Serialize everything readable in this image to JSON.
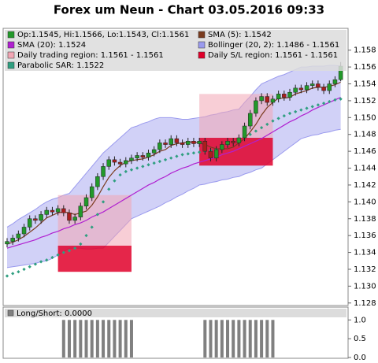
{
  "chart_data": [
    {
      "type": "candlestick",
      "title": "Forex um Neun - Chart 03.05.2016 09:33",
      "name": "Op:1.1545, Hi:1.1566, Lo:1.1543, Cl:1.1561",
      "up_color": "#22992a",
      "down_color": "#aa1e1e",
      "ylim": [
        1.1277,
        1.1604
      ],
      "yticks": [
        1.128,
        {
          "value": 1.13,
          "label": "1.130"
        },
        1.132,
        1.134,
        1.136,
        1.138,
        {
          "value": 1.14,
          "label": "1.140"
        },
        1.142,
        1.144,
        1.146,
        1.148,
        {
          "value": 1.15,
          "label": "1.150"
        },
        1.152,
        1.154,
        1.156,
        1.158
      ],
      "open": [
        1.135,
        1.1353,
        1.1357,
        1.1362,
        1.137,
        1.138,
        1.1378,
        1.1385,
        1.139,
        1.1388,
        1.1392,
        1.1387,
        1.1378,
        1.1382,
        1.1395,
        1.1405,
        1.1418,
        1.143,
        1.1442,
        1.145,
        1.1447,
        1.1445,
        1.1449,
        1.1452,
        1.1455,
        1.1453,
        1.1458,
        1.1462,
        1.147,
        1.1468,
        1.1475,
        1.147,
        1.1468,
        1.1472,
        1.1469,
        1.1472,
        1.146,
        1.1452,
        1.1462,
        1.1468,
        1.1472,
        1.147,
        1.1476,
        1.149,
        1.1505,
        1.152,
        1.1525,
        1.1518,
        1.1522,
        1.1528,
        1.1524,
        1.153,
        1.1535,
        1.1533,
        1.1538,
        1.154,
        1.1536,
        1.1532,
        1.154,
        1.1545
      ],
      "high": [
        1.1357,
        1.1361,
        1.1366,
        1.1374,
        1.1384,
        1.1384,
        1.1389,
        1.1394,
        1.1394,
        1.1396,
        1.1396,
        1.1391,
        1.1386,
        1.1399,
        1.1409,
        1.1422,
        1.1434,
        1.1446,
        1.1454,
        1.1454,
        1.1451,
        1.1453,
        1.1456,
        1.1459,
        1.1459,
        1.1462,
        1.1466,
        1.1474,
        1.1474,
        1.1479,
        1.1479,
        1.1474,
        1.1476,
        1.1476,
        1.1476,
        1.1476,
        1.1464,
        1.1466,
        1.1472,
        1.1476,
        1.1476,
        1.148,
        1.1494,
        1.1509,
        1.1524,
        1.1529,
        1.1529,
        1.1526,
        1.1532,
        1.1532,
        1.1534,
        1.1539,
        1.1539,
        1.1542,
        1.1544,
        1.1544,
        1.154,
        1.1544,
        1.1549,
        1.1566
      ],
      "low": [
        1.1346,
        1.1349,
        1.1353,
        1.1358,
        1.1366,
        1.1374,
        1.1374,
        1.1381,
        1.1384,
        1.1384,
        1.1383,
        1.1374,
        1.1374,
        1.1378,
        1.1391,
        1.1401,
        1.1414,
        1.1426,
        1.1438,
        1.1443,
        1.1441,
        1.1441,
        1.1445,
        1.1448,
        1.1449,
        1.1449,
        1.1454,
        1.1458,
        1.1464,
        1.1464,
        1.1466,
        1.1464,
        1.1464,
        1.1465,
        1.1465,
        1.1456,
        1.1448,
        1.1448,
        1.1458,
        1.1464,
        1.1466,
        1.1466,
        1.1472,
        1.1486,
        1.1501,
        1.1516,
        1.1514,
        1.1514,
        1.1518,
        1.152,
        1.152,
        1.1526,
        1.1529,
        1.1529,
        1.1534,
        1.1532,
        1.1528,
        1.1528,
        1.1536,
        1.1543
      ],
      "close": [
        1.1353,
        1.1357,
        1.1362,
        1.137,
        1.138,
        1.1378,
        1.1385,
        1.139,
        1.1388,
        1.1392,
        1.1387,
        1.1378,
        1.1382,
        1.1395,
        1.1405,
        1.1418,
        1.143,
        1.1442,
        1.145,
        1.1447,
        1.1445,
        1.1449,
        1.1452,
        1.1455,
        1.1453,
        1.1458,
        1.1462,
        1.147,
        1.1468,
        1.1475,
        1.147,
        1.1468,
        1.1472,
        1.1469,
        1.1472,
        1.146,
        1.1452,
        1.1462,
        1.1468,
        1.1472,
        1.147,
        1.1476,
        1.149,
        1.1505,
        1.152,
        1.1525,
        1.1518,
        1.1522,
        1.1528,
        1.1524,
        1.153,
        1.1535,
        1.1533,
        1.1538,
        1.154,
        1.1536,
        1.1532,
        1.154,
        1.1545,
        1.1561
      ],
      "series": [
        {
          "name": "SMA (5): 1.1542",
          "color": "#7a3b1e",
          "values": [
            1.135,
            1.1352,
            1.1355,
            1.1359,
            1.1364,
            1.1369,
            1.1375,
            1.1381,
            1.1384,
            1.1387,
            1.1388,
            1.1387,
            1.1385,
            1.1387,
            1.1389,
            1.1396,
            1.1406,
            1.1418,
            1.1429,
            1.1437,
            1.1443,
            1.1447,
            1.1449,
            1.145,
            1.1451,
            1.1453,
            1.1456,
            1.146,
            1.1462,
            1.1467,
            1.1469,
            1.147,
            1.1471,
            1.1471,
            1.147,
            1.1468,
            1.1465,
            1.1463,
            1.1463,
            1.1463,
            1.1465,
            1.147,
            1.1475,
            1.1483,
            1.1492,
            1.1503,
            1.1512,
            1.1518,
            1.1523,
            1.1523,
            1.1524,
            1.1528,
            1.153,
            1.1532,
            1.1535,
            1.1536,
            1.1536,
            1.1537,
            1.1539,
            1.1542
          ]
        },
        {
          "name": "SMA (20): 1.1524",
          "color": "#b020d0",
          "values": [
            1.1345,
            1.1347,
            1.1349,
            1.1351,
            1.1353,
            1.1355,
            1.1358,
            1.136,
            1.1363,
            1.1365,
            1.1368,
            1.137,
            1.1373,
            1.1375,
            1.1378,
            1.1382,
            1.1385,
            1.1388,
            1.1392,
            1.1396,
            1.14,
            1.1404,
            1.1408,
            1.1412,
            1.1416,
            1.142,
            1.1423,
            1.1427,
            1.143,
            1.1434,
            1.1437,
            1.144,
            1.1442,
            1.1445,
            1.1447,
            1.1449,
            1.1451,
            1.1453,
            1.1456,
            1.1458,
            1.146,
            1.1463,
            1.1466,
            1.1469,
            1.1472,
            1.1475,
            1.1479,
            1.1483,
            1.1487,
            1.1491,
            1.1495,
            1.1498,
            1.1502,
            1.1505,
            1.1509,
            1.1512,
            1.1515,
            1.1518,
            1.1521,
            1.1524
          ]
        }
      ],
      "bollinger": {
        "name": "Bollinger (20, 2): 1.1486 - 1.1561",
        "color": "#9a9aee",
        "upper": [
          1.137,
          1.1374,
          1.1379,
          1.1383,
          1.1387,
          1.1391,
          1.1396,
          1.14,
          1.1403,
          1.1405,
          1.1408,
          1.141,
          1.1418,
          1.1426,
          1.1434,
          1.1442,
          1.145,
          1.1458,
          1.1464,
          1.147,
          1.1476,
          1.1482,
          1.1488,
          1.149,
          1.1493,
          1.1495,
          1.1498,
          1.15,
          1.15,
          1.15,
          1.1499,
          1.1498,
          1.1498,
          1.1499,
          1.15,
          1.1501,
          1.1503,
          1.1504,
          1.1506,
          1.1507,
          1.1509,
          1.151,
          1.1518,
          1.1525,
          1.1533,
          1.154,
          1.1543,
          1.1546,
          1.1549,
          1.1551,
          1.1554,
          1.1557,
          1.156,
          1.156,
          1.1561,
          1.1561,
          1.1561,
          1.1562,
          1.1562,
          1.1561
        ],
        "lower": [
          1.1322,
          1.1323,
          1.1324,
          1.1325,
          1.1326,
          1.1327,
          1.1329,
          1.133,
          1.1333,
          1.1337,
          1.1341,
          1.1345,
          1.1345,
          1.1345,
          1.1344,
          1.1344,
          1.1345,
          1.1345,
          1.1352,
          1.1359,
          1.1366,
          1.1373,
          1.138,
          1.1383,
          1.1386,
          1.1389,
          1.1392,
          1.1395,
          1.1399,
          1.1402,
          1.1406,
          1.1409,
          1.1413,
          1.1416,
          1.142,
          1.1421,
          1.1423,
          1.1424,
          1.1426,
          1.1427,
          1.1429,
          1.143,
          1.1433,
          1.1435,
          1.1438,
          1.144,
          1.1445,
          1.145,
          1.1455,
          1.146,
          1.1465,
          1.147,
          1.1475,
          1.1477,
          1.1479,
          1.148,
          1.1482,
          1.1483,
          1.1485,
          1.1486
        ]
      },
      "regions": [
        {
          "name": "Daily trading region: 1.1561 - 1.1561",
          "color": "#f2a6b4",
          "boxes": [
            {
              "start": 9,
              "end": 22,
              "low": 1.1348,
              "high": 1.1408
            },
            {
              "start": 34,
              "end": 47,
              "low": 1.1476,
              "high": 1.1528
            }
          ]
        },
        {
          "name": "Daily S/L region: 1.1561 - 1.1561",
          "color": "#e0002a",
          "boxes": [
            {
              "start": 9,
              "end": 22,
              "low": 1.1317,
              "high": 1.1348
            },
            {
              "start": 34,
              "end": 47,
              "low": 1.1443,
              "high": 1.1476
            }
          ]
        }
      ],
      "sar": {
        "name": "Parabolic SAR: 1.1522",
        "color": "#2f9f80",
        "values": [
          1.1312,
          1.1315,
          1.1317,
          1.132,
          1.1323,
          1.1326,
          1.1329,
          1.1331,
          1.1334,
          1.1337,
          1.134,
          1.1342,
          1.1345,
          1.135,
          1.136,
          1.137,
          1.1385,
          1.14,
          1.1415,
          1.1425,
          1.1432,
          1.1436,
          1.1438,
          1.144,
          1.1442,
          1.1444,
          1.1446,
          1.1448,
          1.145,
          1.1452,
          1.1454,
          1.1456,
          1.1457,
          1.1458,
          1.1459,
          1.146,
          1.1461,
          1.1462,
          1.1465,
          1.1468,
          1.1471,
          1.1474,
          1.1477,
          1.148,
          1.1484,
          1.1488,
          1.1492,
          1.1496,
          1.1499,
          1.1502,
          1.1505,
          1.1507,
          1.1509,
          1.1511,
          1.1513,
          1.1515,
          1.1517,
          1.1519,
          1.1521,
          1.1522
        ]
      }
    },
    {
      "type": "bar",
      "name": "Long/Short: 0.0000",
      "color": "#808080",
      "ylim": [
        0,
        1.3
      ],
      "yticks": [
        {
          "value": 0,
          "label": "0.0"
        },
        0.5,
        {
          "value": 1,
          "label": "1.0"
        }
      ],
      "values": [
        0,
        0,
        0,
        0,
        0,
        0,
        0,
        0,
        0,
        0,
        1,
        1,
        1,
        1,
        1,
        1,
        1,
        1,
        1,
        1,
        1,
        1,
        1,
        0,
        0,
        0,
        0,
        0,
        0,
        0,
        0,
        0,
        0,
        0,
        0,
        1,
        1,
        1,
        1,
        1,
        1,
        1,
        1,
        1,
        1,
        1,
        1,
        1,
        0,
        0,
        0,
        0,
        0,
        0,
        0,
        0,
        0,
        0,
        0,
        0
      ]
    }
  ]
}
